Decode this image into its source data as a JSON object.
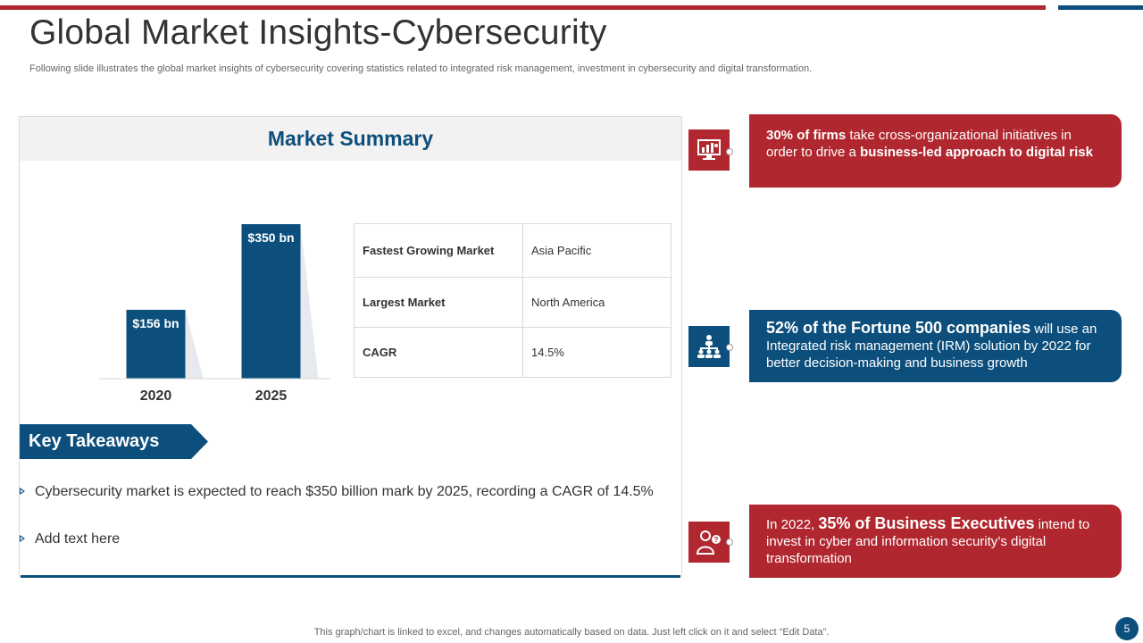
{
  "title": "Global Market Insights-Cybersecurity",
  "subtitle": "Following slide illustrates the global market insights of cybersecurity covering statistics related to integrated risk management, investment in cybersecurity and digital transformation.",
  "market_summary": {
    "heading": "Market Summary",
    "table": [
      {
        "label": "Fastest Growing Market",
        "value": "Asia Pacific"
      },
      {
        "label": "Largest Market",
        "value": "North America"
      },
      {
        "label": "CAGR",
        "value": "14.5%"
      }
    ]
  },
  "chart_data": {
    "type": "bar",
    "title": "",
    "xlabel": "",
    "ylabel": "",
    "categories": [
      "2020",
      "2025"
    ],
    "values": [
      156,
      350
    ],
    "data_labels": [
      "$156 bn",
      "$350 bn"
    ],
    "unit": "$ bn",
    "ylim": [
      0,
      350
    ],
    "grid": false,
    "bar_color": "#0d4f7c"
  },
  "key_takeaways": {
    "heading": "Key Takeaways",
    "items": [
      "Cybersecurity market is expected to reach $350 billion mark by 2025, recording a CAGR of 14.5%",
      "Add text here"
    ]
  },
  "callouts": [
    {
      "icon": "monitor-analytics-icon",
      "color": "#b0272f",
      "pre": "",
      "bold1": "30% of firms",
      "mid": " take cross-organizational initiatives in order to drive a ",
      "bold2": "business-led approach to digital risk",
      "post": ""
    },
    {
      "icon": "org-hierarchy-icon",
      "color": "#0d4f7c",
      "pre": "",
      "bold1": "52% of the Fortune 500 companies",
      "mid": " will use an Integrated risk management (IRM) solution by 2022 for better decision-making and business growth",
      "bold2": "",
      "post": ""
    },
    {
      "icon": "executive-question-icon",
      "color": "#b0272f",
      "pre": "In 2022, ",
      "bold1": "35% of Business Executives",
      "mid": " intend to invest in cyber and information security’s digital transformation",
      "bold2": "",
      "post": ""
    }
  ],
  "footer": "This graph/chart is linked to excel, and changes automatically based on data. Just left click on it and select “Edit Data”.",
  "page_number": "5"
}
